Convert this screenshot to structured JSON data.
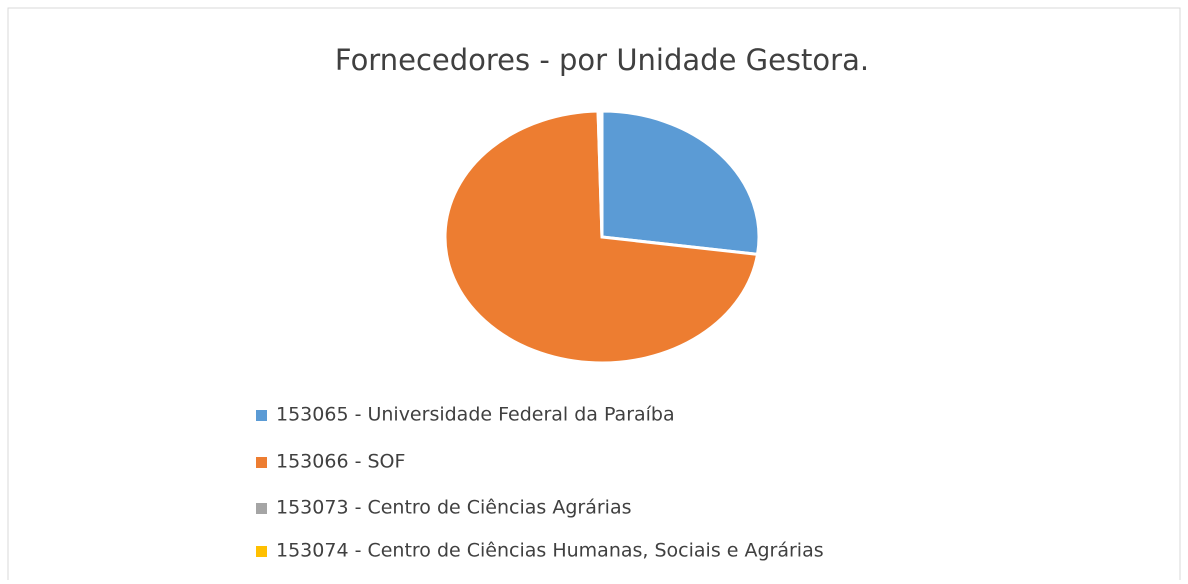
{
  "chart_data": {
    "type": "pie",
    "title": "Fornecedores - por Unidade Gestora.",
    "categories": [
      "153065 - Universidade Federal da Paraíba",
      "153066 - SOF",
      "153073 - Centro de Ciências Agrárias",
      "153074 - Centro de Ciências Humanas, Sociais e Agrárias"
    ],
    "values": [
      27.2,
      72.4,
      0.2,
      0.2
    ],
    "colors": [
      "#5b9bd5",
      "#ed7d31",
      "#a5a5a5",
      "#ffc000"
    ],
    "legend": "bottom"
  }
}
